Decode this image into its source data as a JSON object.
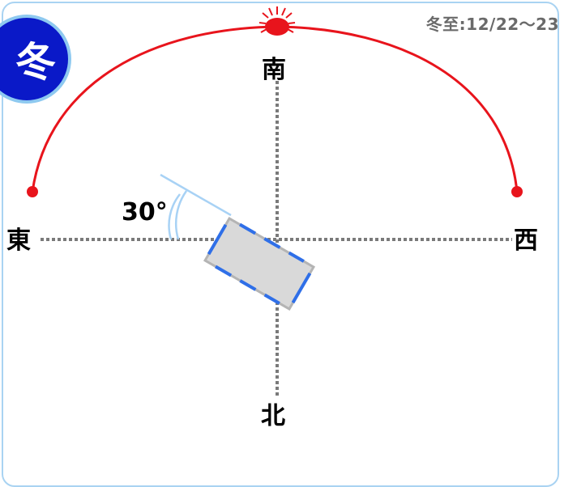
{
  "season_badge": "冬",
  "solstice_label": "冬至:12/22〜23",
  "directions": {
    "south": "南",
    "north": "北",
    "east": "東",
    "west": "西"
  },
  "angle_label": "30°",
  "colors": {
    "sun_path": "#e8141c",
    "sun": "#e8141c",
    "badge_fill": "#0a19c8",
    "badge_ring": "#8ec9f0",
    "frame_border": "#a9d3f2",
    "axis": "#7a7a7a",
    "building_fill": "#d9d9d9",
    "building_border": "#b4b4b4",
    "building_windows": "#2f6fe8",
    "angle_lines": "#a8d2f5"
  }
}
